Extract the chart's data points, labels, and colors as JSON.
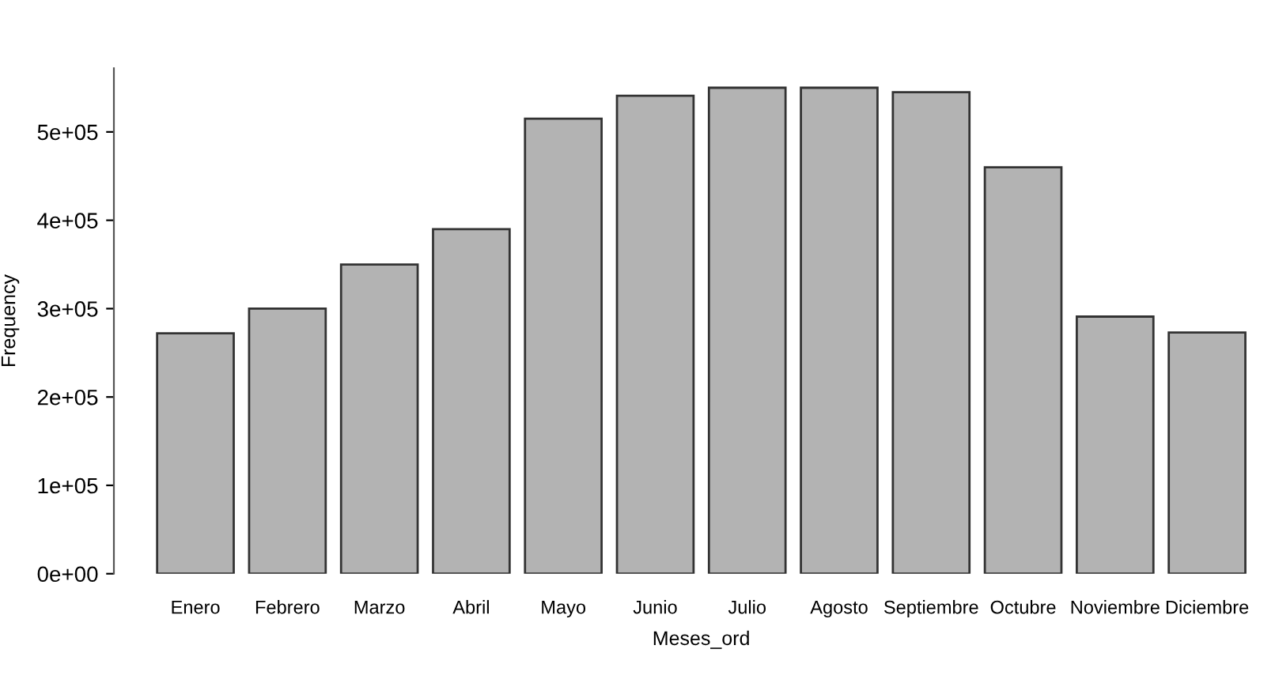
{
  "chart_data": {
    "type": "bar",
    "xlabel": "Meses_ord",
    "ylabel": "Frequency",
    "categories": [
      "Enero",
      "Febrero",
      "Marzo",
      "Abril",
      "Mayo",
      "Junio",
      "Julio",
      "Agosto",
      "Septiembre",
      "Octubre",
      "Noviembre",
      "Diciembre"
    ],
    "values": [
      272000,
      300000,
      350000,
      390000,
      515000,
      541000,
      550000,
      550000,
      545000,
      460000,
      291000,
      273000
    ],
    "color": "#b3b3b3",
    "ylim": [
      0,
      572000
    ],
    "yticks": [
      {
        "value": 0,
        "label": "0e+00"
      },
      {
        "value": 100000,
        "label": "1e+05"
      },
      {
        "value": 200000,
        "label": "2e+05"
      },
      {
        "value": 300000,
        "label": "3e+05"
      },
      {
        "value": 400000,
        "label": "4e+05"
      },
      {
        "value": 500000,
        "label": "5e+05"
      }
    ],
    "grid": false
  }
}
